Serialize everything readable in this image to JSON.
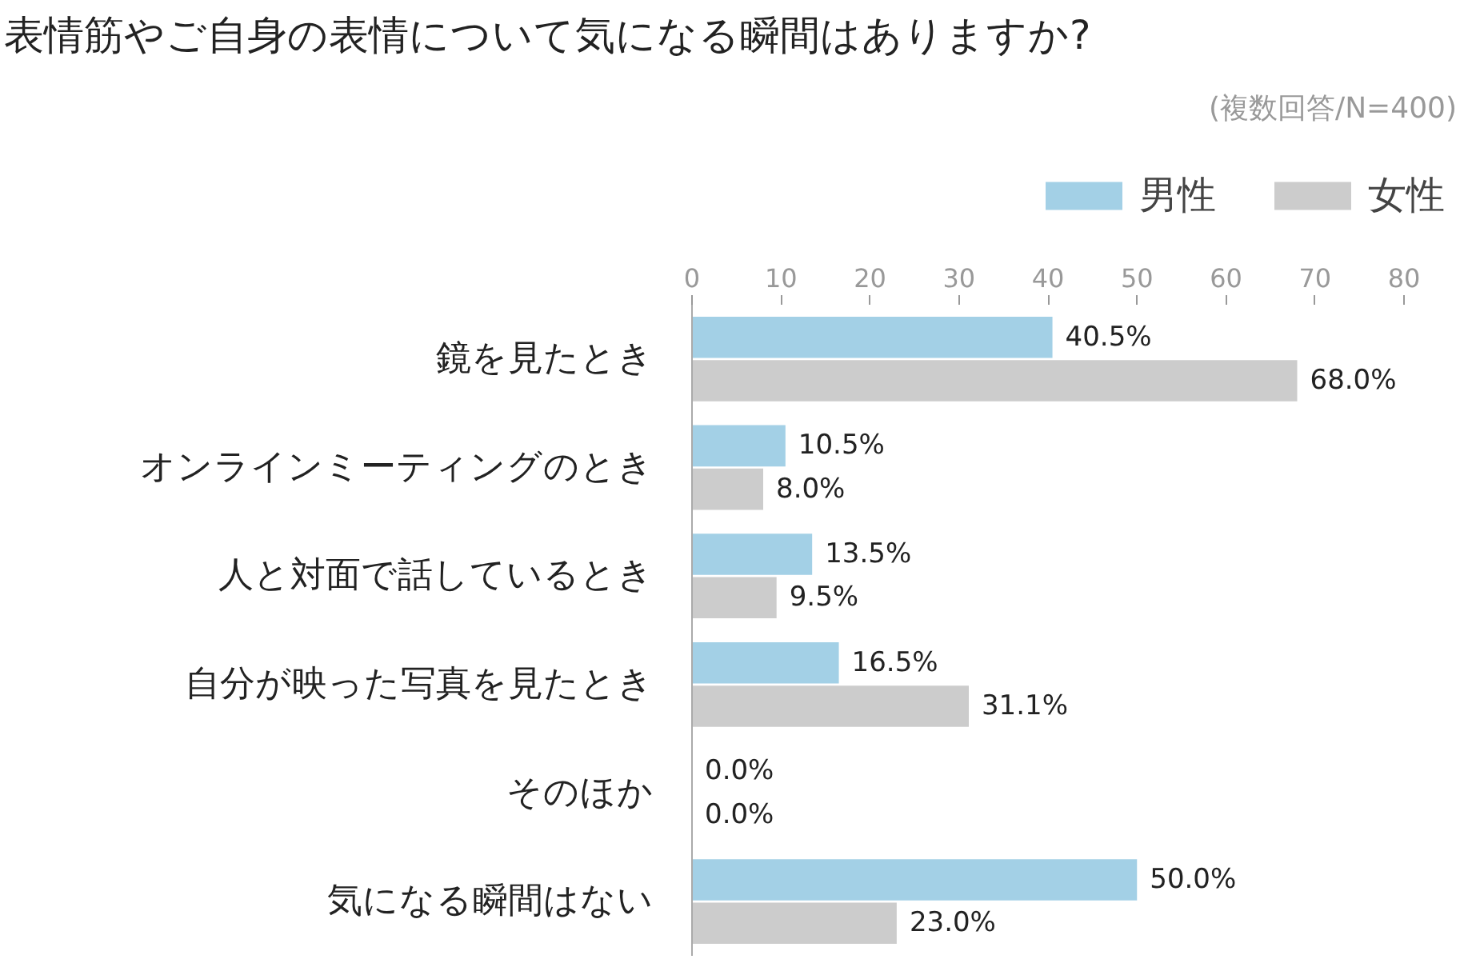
{
  "chart_data": {
    "type": "bar",
    "orientation": "horizontal",
    "title": "表情筋やご自身の表情について気になる瞬間はありますか?",
    "subtitle": "(複数回答/N=400)",
    "categories": [
      "鏡を見たとき",
      "オンラインミーティングのとき",
      "人と対面で話しているとき",
      "自分が映った写真を見たとき",
      "そのほか",
      "気になる瞬間はない"
    ],
    "series": [
      {
        "name": "男性",
        "color": "#a3d0e6",
        "values": [
          40.5,
          10.5,
          13.5,
          16.5,
          0.0,
          50.0
        ],
        "value_labels": [
          "40.5%",
          "10.5%",
          "13.5%",
          "16.5%",
          "0.0%",
          "50.0%"
        ]
      },
      {
        "name": "女性",
        "color": "#cccccc",
        "values": [
          68.0,
          8.0,
          9.5,
          31.1,
          0.0,
          23.0
        ],
        "value_labels": [
          "68.0%",
          "8.0%",
          "9.5%",
          "31.1%",
          "0.0%",
          "23.0%"
        ]
      }
    ],
    "xlim": [
      0,
      80
    ],
    "xticks": [
      0,
      10,
      20,
      30,
      40,
      50,
      60,
      70,
      80
    ],
    "grid": false,
    "legend": "top right"
  }
}
